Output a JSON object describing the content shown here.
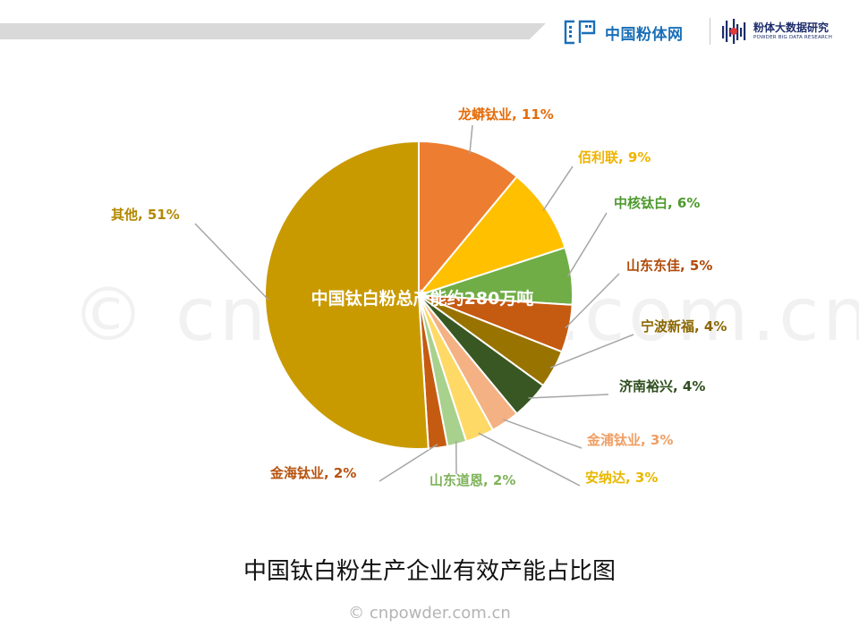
{
  "header": {
    "logo1_text": "中国粉体网",
    "logo2_title": "粉体大数据研究",
    "logo2_subtitle": "POWDER BIG DATA RESEARCH"
  },
  "watermark": "© cnpowder.com.cn",
  "caption": "中国钛白粉生产企业有效产能占比图",
  "footer": "© cnpowder.com.cn",
  "colors": {
    "orange": "#ED7D31",
    "gold": "#FFC000",
    "green": "#70AD47",
    "dark_orange": "#C55A11",
    "brown": "#997300",
    "dark_green": "#375623",
    "light_orange": "#F4B183",
    "light_gold": "#FFD966",
    "light_green": "#A9D18E",
    "mustard": "#C99A00"
  },
  "chart_data": {
    "type": "pie",
    "center_label": "中国钛白粉总产能约280万吨",
    "categories": [
      "龙蟒钛业",
      "佰利联",
      "中核钛白",
      "山东东佳",
      "宁波新福",
      "济南裕兴",
      "金浦钛业",
      "安纳达",
      "山东道恩",
      "金海钛业",
      "其他"
    ],
    "values": [
      11,
      9,
      6,
      5,
      4,
      4,
      3,
      3,
      2,
      2,
      51
    ],
    "unit": "%",
    "labels": [
      "龙蟒钛业, 11%",
      "佰利联, 9%",
      "中核钛白, 6%",
      "山东东佳, 5%",
      "宁波新福, 4%",
      "济南裕兴, 4%",
      "金浦钛业, 3%",
      "安纳达, 3%",
      "山东道恩, 2%",
      "金海钛业, 2%",
      "其他, 51%"
    ],
    "colors": [
      "#ED7D31",
      "#FFC000",
      "#70AD47",
      "#C55A11",
      "#997300",
      "#385723",
      "#F4B183",
      "#FFD966",
      "#A9D18E",
      "#C55A11",
      "#C99A00"
    ],
    "label_colors": [
      "#E46C0A",
      "#F0B400",
      "#4E9A2E",
      "#B04A0A",
      "#8A6700",
      "#2F4F1E",
      "#F09E63",
      "#E8B800",
      "#7FB35A",
      "#B8520E",
      "#B38800"
    ]
  }
}
